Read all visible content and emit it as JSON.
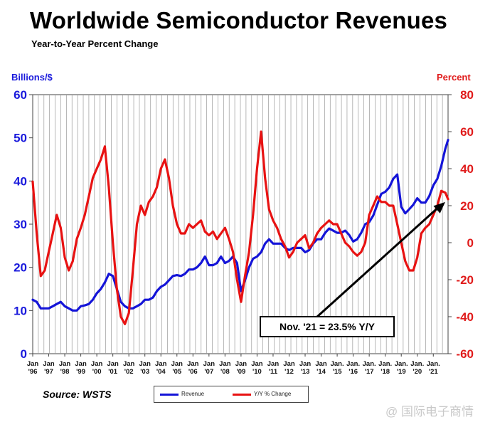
{
  "chart_data": {
    "type": "line",
    "title": "Worldwide Semiconductor Revenues",
    "subtitle": "Year-to-Year Percent Change",
    "ylabel_left": "Billions/$",
    "ylabel_right": "Percent",
    "left_axis": {
      "range": [
        0,
        60
      ],
      "ticks": [
        "0",
        "10",
        "20",
        "30",
        "40",
        "50",
        "60"
      ]
    },
    "right_axis": {
      "range": [
        -60,
        80
      ],
      "ticks": [
        "-60",
        "-40",
        "-20",
        "0",
        "20",
        "40",
        "60",
        "80"
      ]
    },
    "x_range": [
      1996.0,
      2021.92
    ],
    "x_ticks": [
      {
        "pos": 1996,
        "month": "Jan",
        "year": "'96"
      },
      {
        "pos": 1997,
        "month": "Jan",
        "year": "'97"
      },
      {
        "pos": 1998,
        "month": "Jan",
        "year": "'98"
      },
      {
        "pos": 1999,
        "month": "Jan",
        "year": "'99"
      },
      {
        "pos": 2000,
        "month": "Jan",
        "year": "'00"
      },
      {
        "pos": 2001,
        "month": "Jan",
        "year": "'01"
      },
      {
        "pos": 2002,
        "month": "Jan",
        "year": "'02"
      },
      {
        "pos": 2003,
        "month": "Jan",
        "year": "'03"
      },
      {
        "pos": 2004,
        "month": "Jan",
        "year": "'04"
      },
      {
        "pos": 2005,
        "month": "Jan",
        "year": "'05"
      },
      {
        "pos": 2006,
        "month": "Jan",
        "year": "'06"
      },
      {
        "pos": 2007,
        "month": "Jan",
        "year": "'07"
      },
      {
        "pos": 2008,
        "month": "Jan",
        "year": "'08"
      },
      {
        "pos": 2009,
        "month": "Jan",
        "year": "'09"
      },
      {
        "pos": 2010,
        "month": "Jan",
        "year": "'10"
      },
      {
        "pos": 2011,
        "month": "Jan",
        "year": "'11"
      },
      {
        "pos": 2012,
        "month": "Jan",
        "year": "'12"
      },
      {
        "pos": 2013,
        "month": "Jan",
        "year": "'13"
      },
      {
        "pos": 2014,
        "month": "Jan",
        "year": "'14"
      },
      {
        "pos": 2015,
        "month": "Jan.",
        "year": "'15"
      },
      {
        "pos": 2016,
        "month": "Jan.",
        "year": "'16"
      },
      {
        "pos": 2017,
        "month": "Jan.",
        "year": "'17"
      },
      {
        "pos": 2018,
        "month": "Jan.",
        "year": "'18"
      },
      {
        "pos": 2019,
        "month": "Jan.",
        "year": "'19"
      },
      {
        "pos": 2020,
        "month": "Jan.",
        "year": "'20"
      },
      {
        "pos": 2021,
        "month": "Jan.",
        "year": "'21"
      }
    ],
    "grid": "vertical",
    "series": [
      {
        "name": "Revenue",
        "axis": "left",
        "color": "#1414d8",
        "x": [
          1996.0,
          1996.25,
          1996.5,
          1996.75,
          1997.0,
          1997.25,
          1997.5,
          1997.75,
          1998.0,
          1998.25,
          1998.5,
          1998.75,
          1999.0,
          1999.25,
          1999.5,
          1999.75,
          2000.0,
          2000.25,
          2000.5,
          2000.75,
          2001.0,
          2001.25,
          2001.5,
          2001.75,
          2002.0,
          2002.25,
          2002.5,
          2002.75,
          2003.0,
          2003.25,
          2003.5,
          2003.75,
          2004.0,
          2004.25,
          2004.5,
          2004.75,
          2005.0,
          2005.25,
          2005.5,
          2005.75,
          2006.0,
          2006.25,
          2006.5,
          2006.75,
          2007.0,
          2007.25,
          2007.5,
          2007.75,
          2008.0,
          2008.25,
          2008.5,
          2008.75,
          2009.0,
          2009.25,
          2009.5,
          2009.75,
          2010.0,
          2010.25,
          2010.5,
          2010.75,
          2011.0,
          2011.25,
          2011.5,
          2011.75,
          2012.0,
          2012.25,
          2012.5,
          2012.75,
          2013.0,
          2013.25,
          2013.5,
          2013.75,
          2014.0,
          2014.25,
          2014.5,
          2014.75,
          2015.0,
          2015.25,
          2015.5,
          2015.75,
          2016.0,
          2016.25,
          2016.5,
          2016.75,
          2017.0,
          2017.25,
          2017.5,
          2017.75,
          2018.0,
          2018.25,
          2018.5,
          2018.75,
          2019.0,
          2019.25,
          2019.5,
          2019.75,
          2020.0,
          2020.25,
          2020.5,
          2020.75,
          2021.0,
          2021.25,
          2021.5,
          2021.75,
          2021.92
        ],
        "values": [
          12.5,
          12,
          10.5,
          10.5,
          10.5,
          11,
          11.5,
          12,
          11,
          10.5,
          10,
          10,
          11,
          11.2,
          11.5,
          12.5,
          14,
          15,
          16.5,
          18.5,
          18,
          15,
          12,
          11,
          10.5,
          10.5,
          11,
          11.5,
          12.5,
          12.5,
          13,
          14.5,
          15.5,
          16,
          17,
          18,
          18.2,
          18,
          18.5,
          19.5,
          19.5,
          20,
          21,
          22.5,
          20.5,
          20.5,
          21,
          22.5,
          21,
          21.5,
          22.5,
          21,
          14.5,
          17,
          20,
          22,
          22.5,
          23.5,
          25.5,
          26.5,
          25.5,
          25.5,
          25.5,
          24.5,
          24,
          24.5,
          24.5,
          24.5,
          23.5,
          24,
          25.5,
          26.5,
          26.5,
          28,
          29,
          28.5,
          28,
          28,
          28.5,
          27.5,
          26,
          26.5,
          28,
          30,
          30.5,
          32,
          34.5,
          37,
          37.5,
          38.5,
          40.5,
          41.5,
          34,
          32.5,
          33.5,
          34.5,
          36,
          35,
          35,
          36.5,
          39,
          40.5,
          43.5,
          47.5,
          49.5
        ]
      },
      {
        "name": "Y/Y % Change",
        "axis": "right",
        "color": "#e81212",
        "x": [
          1996.0,
          1996.25,
          1996.5,
          1996.75,
          1997.0,
          1997.25,
          1997.5,
          1997.75,
          1998.0,
          1998.25,
          1998.5,
          1998.75,
          1999.0,
          1999.25,
          1999.5,
          1999.75,
          2000.0,
          2000.25,
          2000.5,
          2000.75,
          2001.0,
          2001.25,
          2001.5,
          2001.75,
          2002.0,
          2002.25,
          2002.5,
          2002.75,
          2003.0,
          2003.25,
          2003.5,
          2003.75,
          2004.0,
          2004.25,
          2004.5,
          2004.75,
          2005.0,
          2005.25,
          2005.5,
          2005.75,
          2006.0,
          2006.25,
          2006.5,
          2006.75,
          2007.0,
          2007.25,
          2007.5,
          2007.75,
          2008.0,
          2008.25,
          2008.5,
          2008.75,
          2009.0,
          2009.25,
          2009.5,
          2009.75,
          2010.0,
          2010.25,
          2010.5,
          2010.75,
          2011.0,
          2011.25,
          2011.5,
          2011.75,
          2012.0,
          2012.25,
          2012.5,
          2012.75,
          2013.0,
          2013.25,
          2013.5,
          2013.75,
          2014.0,
          2014.25,
          2014.5,
          2014.75,
          2015.0,
          2015.25,
          2015.5,
          2015.75,
          2016.0,
          2016.25,
          2016.5,
          2016.75,
          2017.0,
          2017.25,
          2017.5,
          2017.75,
          2018.0,
          2018.25,
          2018.5,
          2018.75,
          2019.0,
          2019.25,
          2019.5,
          2019.75,
          2020.0,
          2020.25,
          2020.5,
          2020.75,
          2021.0,
          2021.25,
          2021.5,
          2021.75,
          2021.92
        ],
        "values": [
          33,
          5,
          -18,
          -15,
          -5,
          5,
          15,
          8,
          -8,
          -15,
          -10,
          2,
          8,
          15,
          25,
          35,
          40,
          45,
          52,
          30,
          0,
          -25,
          -40,
          -44,
          -38,
          -15,
          10,
          20,
          15,
          22,
          25,
          30,
          40,
          45,
          35,
          20,
          10,
          5,
          5,
          10,
          8,
          10,
          12,
          6,
          4,
          6,
          2,
          5,
          8,
          2,
          -5,
          -20,
          -32,
          -18,
          -5,
          15,
          40,
          60,
          35,
          18,
          12,
          8,
          2,
          -2,
          -8,
          -5,
          0,
          2,
          4,
          -3,
          0,
          5,
          8,
          10,
          12,
          10,
          10,
          5,
          0,
          -2,
          -5,
          -7,
          -5,
          0,
          15,
          20,
          25,
          22,
          22,
          20,
          20,
          10,
          0,
          -10,
          -15,
          -15,
          -8,
          5,
          8,
          10,
          15,
          20,
          28,
          27,
          23.5
        ]
      }
    ],
    "legend": {
      "placement": "bottom-center",
      "entries": [
        "Revenue",
        "Y/Y % Change"
      ]
    },
    "annotation": {
      "text": "Nov. '21 = 23.5% Y/Y",
      "points_to": {
        "x": 2021.92,
        "y": 23.5,
        "axis": "right"
      }
    },
    "source": "Source: WSTS"
  },
  "watermark": "@ 国际电子商情"
}
